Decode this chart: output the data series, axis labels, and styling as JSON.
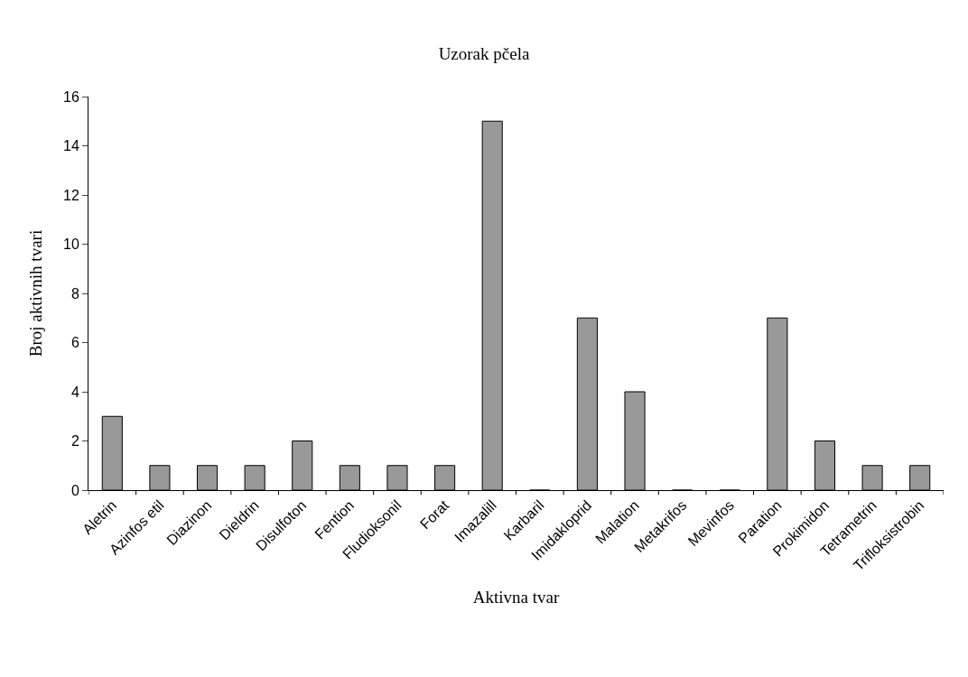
{
  "chart_data": {
    "type": "bar",
    "title": "Uzorak pčela",
    "xlabel": "Aktivna tvar",
    "ylabel": "Broj aktivnih tvari",
    "categories": [
      "Aletrin",
      "Azinfos etil",
      "Diazinon",
      "Dieldrin",
      "Disulfoton",
      "Fention",
      "Fludioksonil",
      "Forat",
      "Imazalill",
      "Karbaril",
      "Imidakloprid",
      "Malation",
      "Metakrifos",
      "Mevinfos",
      "Paration",
      "Prokimidon",
      "Tetrametrin",
      "Trifloksistrobin"
    ],
    "values": [
      3,
      1,
      1,
      1,
      2,
      1,
      1,
      1,
      15,
      0,
      7,
      4,
      0,
      0,
      7,
      2,
      1,
      1
    ],
    "color": "#999999",
    "ylim": [
      0,
      16
    ],
    "yticks": [
      0,
      2,
      4,
      6,
      8,
      10,
      12,
      14,
      16
    ],
    "grid": false,
    "legend": false
  }
}
